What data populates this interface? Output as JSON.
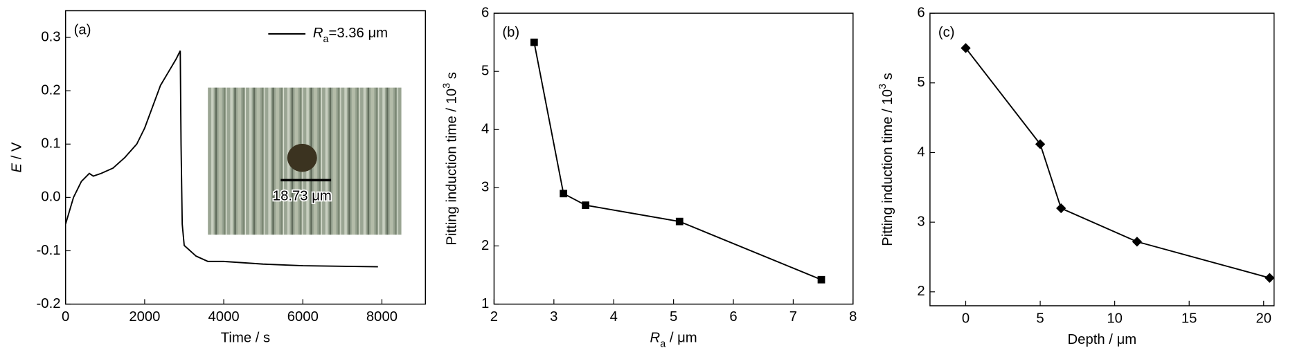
{
  "chart_data": [
    {
      "type": "line",
      "panel_label": "(a)",
      "xlabel": [
        {
          "text": "Time / s"
        }
      ],
      "ylabel": [
        {
          "text": "E",
          "style": "italic"
        },
        {
          "text": " / V"
        }
      ],
      "xlim": [
        0,
        9100
      ],
      "xticks": [
        0,
        2000,
        4000,
        6000,
        8000
      ],
      "ylim": [
        -0.2,
        0.35
      ],
      "yticks": [
        -0.2,
        -0.1,
        {
          "value": 0,
          "label": "0.0"
        },
        0.1,
        0.2,
        0.3
      ],
      "legend": "upper right",
      "inset_label": "18.73 μm",
      "series": [
        {
          "name": [
            {
              "text": "R",
              "style": "italic"
            },
            {
              "text": "a",
              "style": "sub"
            },
            {
              "text": "=3.36 μm"
            }
          ],
          "color": "#000000",
          "marker": "none",
          "x": [
            0,
            200,
            400,
            600,
            700,
            900,
            1200,
            1500,
            1800,
            2000,
            2200,
            2400,
            2600,
            2800,
            2900,
            2920,
            2950,
            3000,
            3300,
            3600,
            4000,
            5000,
            6000,
            7900
          ],
          "values": [
            -0.05,
            0.0,
            0.03,
            0.045,
            0.04,
            0.045,
            0.055,
            0.075,
            0.1,
            0.13,
            0.17,
            0.21,
            0.235,
            0.26,
            0.275,
            0.1,
            -0.05,
            -0.09,
            -0.11,
            -0.12,
            -0.12,
            -0.125,
            -0.128,
            -0.13
          ]
        }
      ]
    },
    {
      "type": "line",
      "panel_label": "(b)",
      "xlabel": [
        {
          "text": "R",
          "style": "italic"
        },
        {
          "text": "a",
          "style": "sub"
        },
        {
          "text": " / μm"
        }
      ],
      "ylabel": [
        {
          "text": "Pitting induction time / 10"
        },
        {
          "text": "3",
          "style": "sup"
        },
        {
          "text": " s"
        }
      ],
      "xlim": [
        2,
        8
      ],
      "xticks": [
        2,
        3,
        4,
        5,
        6,
        7,
        8
      ],
      "ylim": [
        1,
        6
      ],
      "yticks": [
        1,
        2,
        3,
        4,
        5,
        6
      ],
      "series": [
        {
          "color": "#000000",
          "marker": "square",
          "x": [
            2.67,
            3.16,
            3.53,
            5.1,
            7.47
          ],
          "values": [
            5.5,
            2.9,
            2.7,
            2.42,
            1.42
          ]
        }
      ]
    },
    {
      "type": "line",
      "panel_label": "(c)",
      "xlabel": [
        {
          "text": "Depth / μm"
        }
      ],
      "ylabel": [
        {
          "text": "Pitting induction time / 10"
        },
        {
          "text": "3",
          "style": "sup"
        },
        {
          "text": " s"
        }
      ],
      "xlim": [
        -2.4,
        20.7
      ],
      "xticks": [
        0,
        5,
        10,
        15,
        20
      ],
      "ylim": [
        1.8,
        6
      ],
      "yticks": [
        2,
        3,
        4,
        5,
        6
      ],
      "series": [
        {
          "color": "#000000",
          "marker": "diamond",
          "x": [
            0,
            5,
            6.4,
            11.5,
            20.4
          ],
          "values": [
            5.5,
            4.12,
            3.2,
            2.72,
            2.2
          ]
        }
      ]
    }
  ]
}
